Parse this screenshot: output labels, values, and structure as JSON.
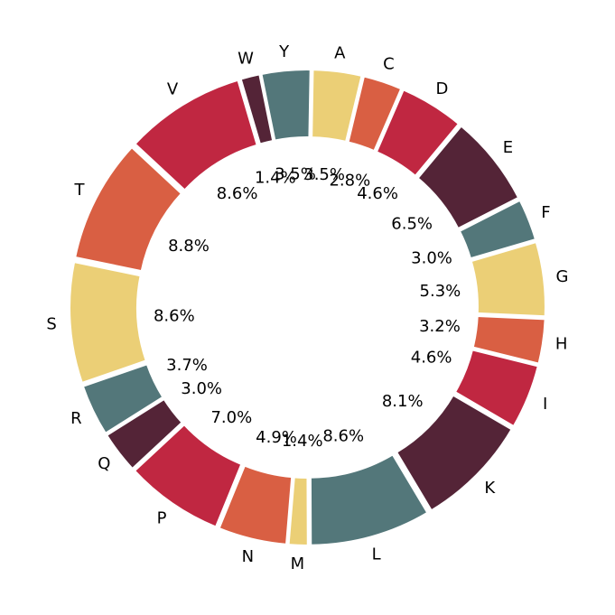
{
  "chart_data": {
    "type": "pie",
    "style": "donut",
    "categories": [
      "A",
      "C",
      "D",
      "E",
      "F",
      "G",
      "H",
      "I",
      "K",
      "L",
      "M",
      "N",
      "P",
      "Q",
      "R",
      "S",
      "T",
      "V",
      "W",
      "Y"
    ],
    "values": [
      3.5,
      2.8,
      4.6,
      6.5,
      3.0,
      5.3,
      3.2,
      4.6,
      8.1,
      8.6,
      1.4,
      4.9,
      7.0,
      3.0,
      3.7,
      8.6,
      8.8,
      8.6,
      1.4,
      3.5
    ],
    "labels": [
      "3.5%",
      "2.8%",
      "4.6%",
      "6.5%",
      "3.0%",
      "5.3%",
      "3.2%",
      "4.6%",
      "8.1%",
      "8.6%",
      "1.4%",
      "4.9%",
      "7.0%",
      "3.0%",
      "3.7%",
      "8.6%",
      "8.8%",
      "8.6%",
      "1.4%",
      "3.5%"
    ],
    "colors": [
      "#ebcf76",
      "#d95f43",
      "#c02741",
      "#542437",
      "#53777a",
      "#ebcf76",
      "#d95f43",
      "#c02741",
      "#542437",
      "#53777a",
      "#ebcf76",
      "#d95f43",
      "#c02741",
      "#542437",
      "#53777a",
      "#ebcf76",
      "#d95f43",
      "#c02741",
      "#542437",
      "#53777a"
    ],
    "title": "",
    "legend": "none",
    "direction": "clockwise"
  }
}
